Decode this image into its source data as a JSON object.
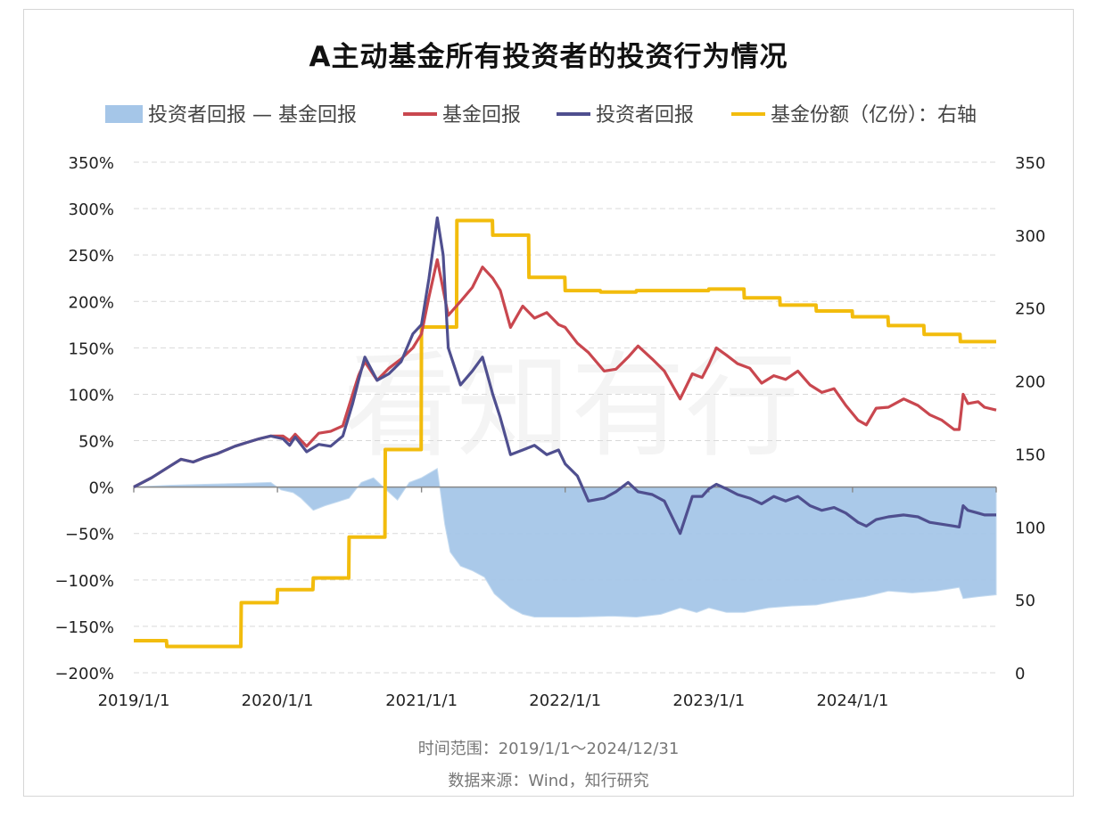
{
  "chart_data": {
    "type": "line",
    "title": "A主动基金所有投资者的投资行为情况",
    "legend_position": "top",
    "legend": [
      {
        "name": "投资者回报 — 基金回报",
        "kind": "area",
        "color": "#a5c6e8"
      },
      {
        "name": "基金回报",
        "kind": "line",
        "color": "#c9474f"
      },
      {
        "name": "投资者回报",
        "kind": "line",
        "color": "#4f4f8f"
      },
      {
        "name": "基金份额（亿份）：右轴",
        "kind": "line",
        "color": "#f2bc0d"
      }
    ],
    "x_ticks": [
      "2019/1/1",
      "2020/1/1",
      "2021/1/1",
      "2022/1/1",
      "2023/1/1",
      "2024/1/1"
    ],
    "x_range": [
      "2019-01-01",
      "2024-12-31"
    ],
    "y_left": {
      "min": -200,
      "max": 350,
      "step": 50,
      "ticks": [
        "350%",
        "300%",
        "250%",
        "200%",
        "150%",
        "100%",
        "50%",
        "0%",
        "−50%",
        "−100%",
        "−150%",
        "−200%"
      ]
    },
    "y_right": {
      "min": 0,
      "max": 350,
      "step": 50,
      "ticks": [
        "350",
        "300",
        "250",
        "200",
        "150",
        "100",
        "50",
        "0"
      ]
    },
    "grid": true,
    "series": [
      {
        "name": "基金回报",
        "axis": "left",
        "color": "#c9474f",
        "points": [
          [
            "2019-01-01",
            0
          ],
          [
            "2019-02-15",
            10
          ],
          [
            "2019-04-01",
            22
          ],
          [
            "2019-05-01",
            30
          ],
          [
            "2019-06-01",
            27
          ],
          [
            "2019-07-01",
            32
          ],
          [
            "2019-08-01",
            36
          ],
          [
            "2019-09-15",
            44
          ],
          [
            "2019-10-15",
            48
          ],
          [
            "2019-11-15",
            52
          ],
          [
            "2019-12-15",
            55
          ],
          [
            "2020-01-15",
            55
          ],
          [
            "2020-02-01",
            50
          ],
          [
            "2020-02-15",
            57
          ],
          [
            "2020-03-15",
            44
          ],
          [
            "2020-04-15",
            58
          ],
          [
            "2020-05-15",
            60
          ],
          [
            "2020-06-15",
            66
          ],
          [
            "2020-07-10",
            100
          ],
          [
            "2020-07-25",
            120
          ],
          [
            "2020-08-10",
            135
          ],
          [
            "2020-09-10",
            115
          ],
          [
            "2020-10-10",
            128
          ],
          [
            "2020-11-10",
            138
          ],
          [
            "2020-12-10",
            150
          ],
          [
            "2021-01-01",
            165
          ],
          [
            "2021-01-20",
            205
          ],
          [
            "2021-02-10",
            245
          ],
          [
            "2021-03-10",
            185
          ],
          [
            "2021-04-10",
            200
          ],
          [
            "2021-05-10",
            215
          ],
          [
            "2021-06-05",
            237
          ],
          [
            "2021-07-01",
            225
          ],
          [
            "2021-07-20",
            212
          ],
          [
            "2021-08-15",
            172
          ],
          [
            "2021-09-15",
            195
          ],
          [
            "2021-10-15",
            182
          ],
          [
            "2021-11-15",
            188
          ],
          [
            "2021-12-15",
            175
          ],
          [
            "2022-01-01",
            172
          ],
          [
            "2022-02-01",
            155
          ],
          [
            "2022-03-01",
            145
          ],
          [
            "2022-04-10",
            125
          ],
          [
            "2022-05-10",
            127
          ],
          [
            "2022-06-10",
            140
          ],
          [
            "2022-07-05",
            152
          ],
          [
            "2022-08-10",
            138
          ],
          [
            "2022-09-10",
            125
          ],
          [
            "2022-10-20",
            95
          ],
          [
            "2022-11-20",
            122
          ],
          [
            "2022-12-15",
            118
          ],
          [
            "2023-01-01",
            132
          ],
          [
            "2023-01-20",
            150
          ],
          [
            "2023-02-15",
            142
          ],
          [
            "2023-03-15",
            133
          ],
          [
            "2023-04-15",
            128
          ],
          [
            "2023-05-15",
            112
          ],
          [
            "2023-06-15",
            120
          ],
          [
            "2023-07-15",
            116
          ],
          [
            "2023-08-15",
            125
          ],
          [
            "2023-09-15",
            110
          ],
          [
            "2023-10-15",
            102
          ],
          [
            "2023-11-15",
            106
          ],
          [
            "2023-12-15",
            88
          ],
          [
            "2024-01-15",
            72
          ],
          [
            "2024-02-05",
            67
          ],
          [
            "2024-03-01",
            85
          ],
          [
            "2024-04-01",
            86
          ],
          [
            "2024-05-10",
            95
          ],
          [
            "2024-06-15",
            88
          ],
          [
            "2024-07-15",
            78
          ],
          [
            "2024-08-15",
            72
          ],
          [
            "2024-09-15",
            62
          ],
          [
            "2024-09-28",
            62
          ],
          [
            "2024-10-08",
            100
          ],
          [
            "2024-10-20",
            90
          ],
          [
            "2024-11-15",
            92
          ],
          [
            "2024-12-01",
            86
          ],
          [
            "2024-12-31",
            83
          ]
        ]
      },
      {
        "name": "投资者回报",
        "axis": "left",
        "color": "#4f4f8f",
        "points": [
          [
            "2019-01-01",
            0
          ],
          [
            "2019-02-15",
            10
          ],
          [
            "2019-04-01",
            22
          ],
          [
            "2019-05-01",
            30
          ],
          [
            "2019-06-01",
            27
          ],
          [
            "2019-07-01",
            32
          ],
          [
            "2019-08-01",
            36
          ],
          [
            "2019-09-15",
            44
          ],
          [
            "2019-10-15",
            48
          ],
          [
            "2019-11-15",
            52
          ],
          [
            "2019-12-15",
            55
          ],
          [
            "2020-01-15",
            52
          ],
          [
            "2020-02-01",
            45
          ],
          [
            "2020-02-15",
            54
          ],
          [
            "2020-03-15",
            38
          ],
          [
            "2020-04-15",
            46
          ],
          [
            "2020-05-15",
            44
          ],
          [
            "2020-06-15",
            55
          ],
          [
            "2020-07-10",
            90
          ],
          [
            "2020-07-25",
            115
          ],
          [
            "2020-08-10",
            140
          ],
          [
            "2020-09-10",
            115
          ],
          [
            "2020-10-10",
            122
          ],
          [
            "2020-11-10",
            135
          ],
          [
            "2020-12-10",
            165
          ],
          [
            "2021-01-01",
            175
          ],
          [
            "2021-01-20",
            225
          ],
          [
            "2021-02-10",
            290
          ],
          [
            "2021-02-25",
            250
          ],
          [
            "2021-03-10",
            150
          ],
          [
            "2021-04-10",
            110
          ],
          [
            "2021-05-10",
            125
          ],
          [
            "2021-06-05",
            140
          ],
          [
            "2021-07-01",
            100
          ],
          [
            "2021-07-20",
            75
          ],
          [
            "2021-08-15",
            35
          ],
          [
            "2021-09-15",
            40
          ],
          [
            "2021-10-15",
            45
          ],
          [
            "2021-11-15",
            35
          ],
          [
            "2021-12-15",
            40
          ],
          [
            "2022-01-01",
            25
          ],
          [
            "2022-02-01",
            12
          ],
          [
            "2022-03-01",
            -15
          ],
          [
            "2022-04-10",
            -12
          ],
          [
            "2022-05-10",
            -5
          ],
          [
            "2022-06-10",
            5
          ],
          [
            "2022-07-05",
            -5
          ],
          [
            "2022-08-10",
            -8
          ],
          [
            "2022-09-10",
            -15
          ],
          [
            "2022-10-20",
            -50
          ],
          [
            "2022-11-20",
            -10
          ],
          [
            "2022-12-15",
            -10
          ],
          [
            "2023-01-01",
            -2
          ],
          [
            "2023-01-20",
            3
          ],
          [
            "2023-02-15",
            -2
          ],
          [
            "2023-03-15",
            -8
          ],
          [
            "2023-04-15",
            -12
          ],
          [
            "2023-05-15",
            -18
          ],
          [
            "2023-06-15",
            -10
          ],
          [
            "2023-07-15",
            -15
          ],
          [
            "2023-08-15",
            -10
          ],
          [
            "2023-09-15",
            -20
          ],
          [
            "2023-10-15",
            -25
          ],
          [
            "2023-11-15",
            -22
          ],
          [
            "2023-12-15",
            -28
          ],
          [
            "2024-01-15",
            -38
          ],
          [
            "2024-02-05",
            -42
          ],
          [
            "2024-03-01",
            -35
          ],
          [
            "2024-04-01",
            -32
          ],
          [
            "2024-05-10",
            -30
          ],
          [
            "2024-06-15",
            -32
          ],
          [
            "2024-07-15",
            -38
          ],
          [
            "2024-08-15",
            -40
          ],
          [
            "2024-09-15",
            -42
          ],
          [
            "2024-09-28",
            -43
          ],
          [
            "2024-10-08",
            -20
          ],
          [
            "2024-10-20",
            -25
          ],
          [
            "2024-11-15",
            -28
          ],
          [
            "2024-12-01",
            -30
          ],
          [
            "2024-12-31",
            -30
          ]
        ]
      },
      {
        "name": "基金份额（亿份）：右轴",
        "axis": "right",
        "color": "#f2bc0d",
        "points": [
          [
            "2019-01-01",
            22
          ],
          [
            "2019-03-25",
            22
          ],
          [
            "2019-03-26",
            18
          ],
          [
            "2019-09-30",
            18
          ],
          [
            "2019-10-01",
            48
          ],
          [
            "2019-12-31",
            48
          ],
          [
            "2020-01-01",
            57
          ],
          [
            "2020-03-31",
            57
          ],
          [
            "2020-04-01",
            65
          ],
          [
            "2020-06-30",
            65
          ],
          [
            "2020-07-01",
            93
          ],
          [
            "2020-09-30",
            93
          ],
          [
            "2020-10-01",
            153
          ],
          [
            "2020-12-31",
            153
          ],
          [
            "2021-01-01",
            237
          ],
          [
            "2021-03-31",
            237
          ],
          [
            "2021-04-01",
            310
          ],
          [
            "2021-06-30",
            310
          ],
          [
            "2021-07-01",
            300
          ],
          [
            "2021-09-30",
            300
          ],
          [
            "2021-10-01",
            271
          ],
          [
            "2021-12-31",
            271
          ],
          [
            "2022-01-01",
            262
          ],
          [
            "2022-03-31",
            262
          ],
          [
            "2022-04-01",
            261
          ],
          [
            "2022-06-30",
            261
          ],
          [
            "2022-07-01",
            262
          ],
          [
            "2022-12-31",
            262
          ],
          [
            "2023-01-01",
            263
          ],
          [
            "2023-03-31",
            263
          ],
          [
            "2023-04-01",
            257
          ],
          [
            "2023-06-30",
            257
          ],
          [
            "2023-07-01",
            252
          ],
          [
            "2023-09-30",
            252
          ],
          [
            "2023-10-01",
            248
          ],
          [
            "2023-12-31",
            248
          ],
          [
            "2024-01-01",
            244
          ],
          [
            "2024-03-31",
            244
          ],
          [
            "2024-04-01",
            238
          ],
          [
            "2024-06-30",
            238
          ],
          [
            "2024-07-01",
            232
          ],
          [
            "2024-09-30",
            232
          ],
          [
            "2024-10-01",
            227
          ],
          [
            "2024-12-31",
            227
          ]
        ]
      }
    ],
    "area_series": {
      "name": "投资者回报 — 基金回报",
      "axis": "left",
      "color": "#a5c6e8",
      "points": [
        [
          "2019-01-01",
          0
        ],
        [
          "2019-04-01",
          2
        ],
        [
          "2019-07-01",
          3
        ],
        [
          "2019-10-01",
          4
        ],
        [
          "2019-12-15",
          5
        ],
        [
          "2020-01-10",
          -3
        ],
        [
          "2020-02-10",
          -6
        ],
        [
          "2020-03-01",
          -12
        ],
        [
          "2020-04-01",
          -25
        ],
        [
          "2020-05-01",
          -20
        ],
        [
          "2020-06-01",
          -16
        ],
        [
          "2020-07-01",
          -12
        ],
        [
          "2020-08-01",
          5
        ],
        [
          "2020-09-01",
          10
        ],
        [
          "2020-10-01",
          -2
        ],
        [
          "2020-11-01",
          -14
        ],
        [
          "2020-12-01",
          5
        ],
        [
          "2021-01-01",
          10
        ],
        [
          "2021-02-10",
          20
        ],
        [
          "2021-03-01",
          -40
        ],
        [
          "2021-03-15",
          -70
        ],
        [
          "2021-04-10",
          -85
        ],
        [
          "2021-05-10",
          -90
        ],
        [
          "2021-06-10",
          -97
        ],
        [
          "2021-07-05",
          -115
        ],
        [
          "2021-08-15",
          -130
        ],
        [
          "2021-09-15",
          -137
        ],
        [
          "2021-10-15",
          -140
        ],
        [
          "2021-12-01",
          -140
        ],
        [
          "2022-02-01",
          -140
        ],
        [
          "2022-05-01",
          -139
        ],
        [
          "2022-07-01",
          -140
        ],
        [
          "2022-09-01",
          -137
        ],
        [
          "2022-10-20",
          -130
        ],
        [
          "2022-12-01",
          -135
        ],
        [
          "2023-01-01",
          -130
        ],
        [
          "2023-02-15",
          -135
        ],
        [
          "2023-04-01",
          -135
        ],
        [
          "2023-06-01",
          -130
        ],
        [
          "2023-08-01",
          -128
        ],
        [
          "2023-10-01",
          -127
        ],
        [
          "2023-12-01",
          -122
        ],
        [
          "2024-02-01",
          -118
        ],
        [
          "2024-04-01",
          -112
        ],
        [
          "2024-06-01",
          -114
        ],
        [
          "2024-08-01",
          -112
        ],
        [
          "2024-09-28",
          -108
        ],
        [
          "2024-10-08",
          -120
        ],
        [
          "2024-11-15",
          -118
        ],
        [
          "2024-12-31",
          -116
        ]
      ]
    }
  },
  "footnotes": {
    "range": "时间范围：2019/1/1～2024/12/31",
    "source": "数据来源：Wind，知行研究"
  },
  "watermark": "看知有行"
}
